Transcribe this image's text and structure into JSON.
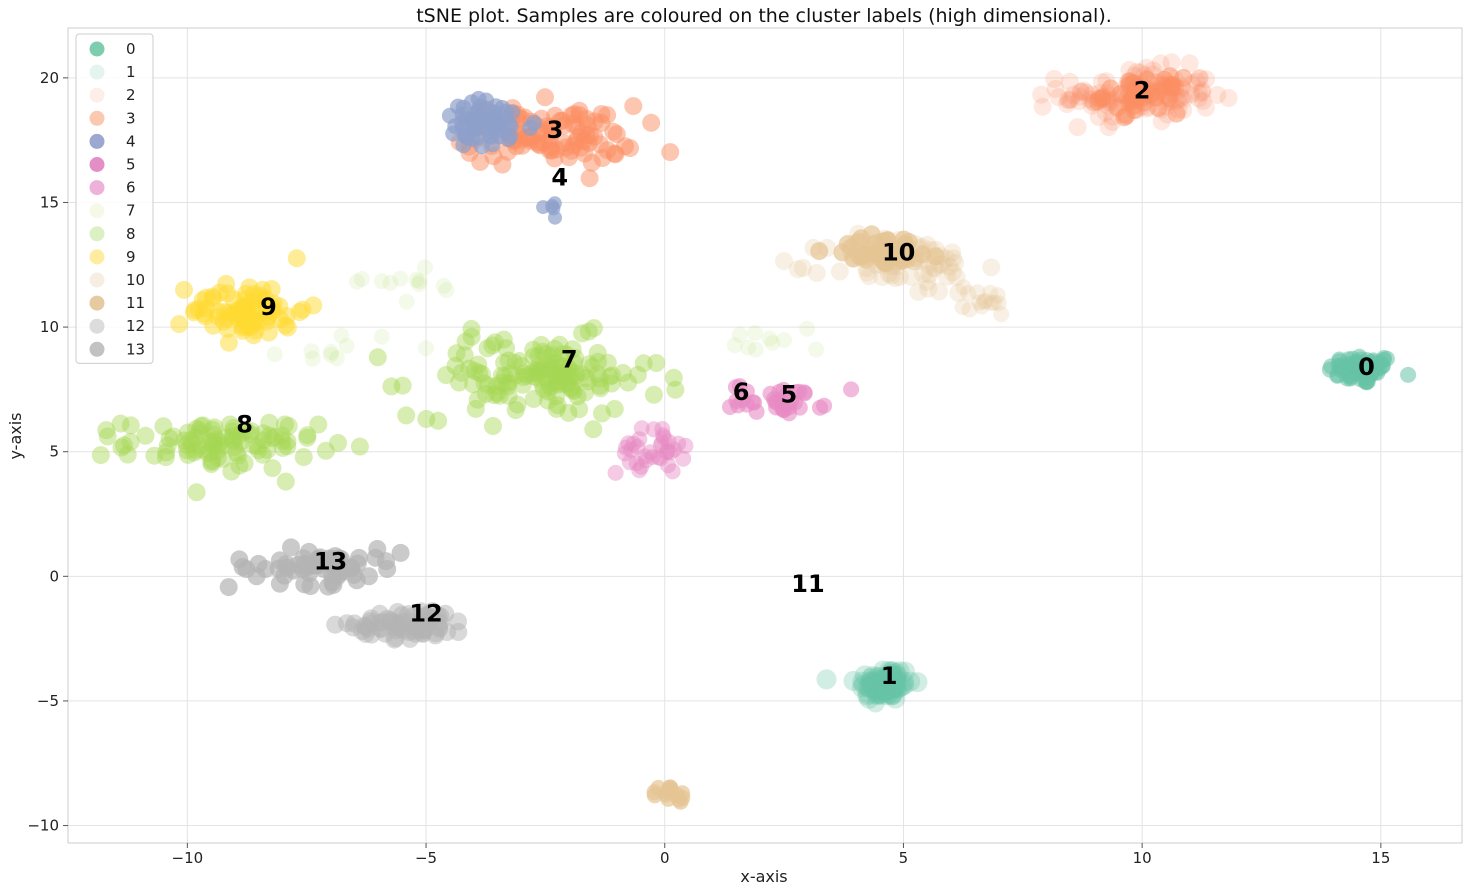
{
  "chart_data": {
    "type": "scatter",
    "title": "tSNE plot. Samples are coloured on the cluster labels (high dimensional).",
    "xlabel": "x-axis",
    "ylabel": "y-axis",
    "xlim": [
      -12.5,
      16.7
    ],
    "ylim": [
      -10.7,
      22
    ],
    "xticks": [
      -10,
      -5,
      0,
      5,
      10,
      15
    ],
    "yticks": [
      -10,
      -5,
      0,
      5,
      10,
      15,
      20
    ],
    "xtick_labels": [
      "−10",
      "−5",
      "0",
      "5",
      "10",
      "15"
    ],
    "ytick_labels": [
      "−10",
      "−5",
      "0",
      "5",
      "10",
      "15",
      "20"
    ],
    "grid": true,
    "legend_position": "top-left",
    "legend": [
      {
        "label": "0",
        "color": "#7fcdaf"
      },
      {
        "label": "1",
        "color": "#e4f4ee"
      },
      {
        "label": "2",
        "color": "#fdeee8"
      },
      {
        "label": "3",
        "color": "#fbc8b0"
      },
      {
        "label": "4",
        "color": "#9da8d0"
      },
      {
        "label": "5",
        "color": "#e38fc6"
      },
      {
        "label": "6",
        "color": "#eeb1da"
      },
      {
        "label": "7",
        "color": "#f4f9e8"
      },
      {
        "label": "8",
        "color": "#ddf0c4"
      },
      {
        "label": "9",
        "color": "#ffec9f"
      },
      {
        "label": "10",
        "color": "#f6eee2"
      },
      {
        "label": "11",
        "color": "#e6cba2"
      },
      {
        "label": "12",
        "color": "#dcdcdc"
      },
      {
        "label": "13",
        "color": "#c2c2c2"
      }
    ],
    "cluster_labels": [
      {
        "text": "0",
        "x": 14.7,
        "y": 8.4
      },
      {
        "text": "1",
        "x": 4.7,
        "y": -4.0
      },
      {
        "text": "2",
        "x": 10.0,
        "y": 19.5
      },
      {
        "text": "3",
        "x": -2.3,
        "y": 17.9
      },
      {
        "text": "4",
        "x": -2.2,
        "y": 16.0
      },
      {
        "text": "5",
        "x": 2.6,
        "y": 7.3
      },
      {
        "text": "6",
        "x": 1.6,
        "y": 7.4
      },
      {
        "text": "7",
        "x": -2.0,
        "y": 8.7
      },
      {
        "text": "8",
        "x": -8.8,
        "y": 6.1
      },
      {
        "text": "9",
        "x": -8.3,
        "y": 10.8
      },
      {
        "text": "10",
        "x": 4.9,
        "y": 13.0
      },
      {
        "text": "11",
        "x": 3.0,
        "y": -0.3
      },
      {
        "text": "12",
        "x": -5.0,
        "y": -1.5
      },
      {
        "text": "13",
        "x": -7.0,
        "y": 0.6
      }
    ],
    "series": [
      {
        "name": "0",
        "color": "#66c2a5",
        "alpha": 0.55,
        "blobs": [
          {
            "cx": 14.6,
            "cy": 8.3,
            "sx": 0.35,
            "sy": 0.3,
            "n": 70,
            "r": 8
          },
          {
            "cx": 14.7,
            "cy": 8.3,
            "sx": 0.12,
            "sy": 0.1,
            "n": 20,
            "r": 7
          }
        ]
      },
      {
        "name": "1",
        "color": "#66c2a5",
        "alpha": 0.3,
        "blobs": [
          {
            "cx": 4.6,
            "cy": -4.3,
            "sx": 0.3,
            "sy": 0.35,
            "n": 80,
            "r": 10
          },
          {
            "cx": 4.6,
            "cy": -4.6,
            "sx": 0.12,
            "sy": 0.12,
            "n": 20,
            "r": 9
          }
        ]
      },
      {
        "name": "2",
        "color": "#fc8d62",
        "alpha": 0.2,
        "blobs": [
          {
            "cx": 9.9,
            "cy": 19.3,
            "sx": 0.8,
            "sy": 0.55,
            "n": 120,
            "r": 9
          }
        ]
      },
      {
        "name": "3",
        "color": "#fc8d62",
        "alpha": 0.5,
        "blobs": [
          {
            "cx": -2.4,
            "cy": 17.7,
            "sx": 0.9,
            "sy": 0.6,
            "n": 100,
            "r": 9
          },
          {
            "cx": 10.0,
            "cy": 19.3,
            "sx": 0.4,
            "sy": 0.35,
            "n": 40,
            "r": 9
          }
        ]
      },
      {
        "name": "4",
        "color": "#8da0cb",
        "alpha": 0.7,
        "blobs": [
          {
            "cx": -3.7,
            "cy": 18.1,
            "sx": 0.5,
            "sy": 0.5,
            "n": 60,
            "r": 8
          },
          {
            "cx": -2.3,
            "cy": 14.8,
            "sx": 0.2,
            "sy": 0.15,
            "n": 5,
            "r": 7
          }
        ]
      },
      {
        "name": "5",
        "color": "#e78ac3",
        "alpha": 0.6,
        "blobs": [
          {
            "cx": 2.4,
            "cy": 7.1,
            "sx": 0.5,
            "sy": 0.3,
            "n": 35,
            "r": 8
          }
        ]
      },
      {
        "name": "6",
        "color": "#e78ac3",
        "alpha": 0.45,
        "blobs": [
          {
            "cx": -0.3,
            "cy": 5.0,
            "sx": 0.35,
            "sy": 0.45,
            "n": 35,
            "r": 8
          }
        ]
      },
      {
        "name": "7",
        "color": "#a6d854",
        "alpha": 0.12,
        "blobs": [
          {
            "cx": -5.5,
            "cy": 11.8,
            "sx": 0.6,
            "sy": 0.4,
            "n": 12,
            "r": 8
          },
          {
            "cx": -6.8,
            "cy": 9.2,
            "sx": 0.6,
            "sy": 0.3,
            "n": 10,
            "r": 8
          },
          {
            "cx": 2.3,
            "cy": 9.5,
            "sx": 0.6,
            "sy": 0.4,
            "n": 10,
            "r": 8
          }
        ]
      },
      {
        "name": "8",
        "color": "#a6d854",
        "alpha": 0.45,
        "blobs": [
          {
            "cx": -9.3,
            "cy": 5.3,
            "sx": 1.0,
            "sy": 0.5,
            "n": 100,
            "r": 9
          },
          {
            "cx": -2.7,
            "cy": 8.0,
            "sx": 1.3,
            "sy": 0.8,
            "n": 130,
            "r": 9
          },
          {
            "cx": -2.4,
            "cy": 8.2,
            "sx": 0.4,
            "sy": 0.4,
            "n": 30,
            "r": 8
          }
        ]
      },
      {
        "name": "9",
        "color": "#ffd92f",
        "alpha": 0.5,
        "blobs": [
          {
            "cx": -8.7,
            "cy": 10.7,
            "sx": 0.6,
            "sy": 0.6,
            "n": 70,
            "r": 9
          },
          {
            "cx": -8.8,
            "cy": 10.6,
            "sx": 0.2,
            "sy": 0.2,
            "n": 15,
            "r": 8
          }
        ]
      },
      {
        "name": "10",
        "color": "#e5c494",
        "alpha": 0.25,
        "blobs": [
          {
            "cx": 5.0,
            "cy": 12.5,
            "sx": 0.8,
            "sy": 0.6,
            "n": 70,
            "r": 9
          },
          {
            "cx": 6.5,
            "cy": 11.0,
            "sx": 0.5,
            "sy": 0.3,
            "n": 15,
            "r": 8
          }
        ]
      },
      {
        "name": "11",
        "color": "#e5c494",
        "alpha": 0.7,
        "blobs": [
          {
            "cx": 4.7,
            "cy": 13.1,
            "sx": 0.6,
            "sy": 0.3,
            "n": 40,
            "r": 9
          },
          {
            "cx": 0.1,
            "cy": -8.8,
            "sx": 0.2,
            "sy": 0.2,
            "n": 15,
            "r": 8
          }
        ]
      },
      {
        "name": "12",
        "color": "#b3b3b3",
        "alpha": 0.5,
        "blobs": [
          {
            "cx": -5.3,
            "cy": -1.9,
            "sx": 0.6,
            "sy": 0.3,
            "n": 70,
            "r": 9
          }
        ]
      },
      {
        "name": "13",
        "color": "#b3b3b3",
        "alpha": 0.7,
        "blobs": [
          {
            "cx": -7.3,
            "cy": 0.4,
            "sx": 0.9,
            "sy": 0.35,
            "n": 60,
            "r": 9
          }
        ]
      }
    ]
  }
}
